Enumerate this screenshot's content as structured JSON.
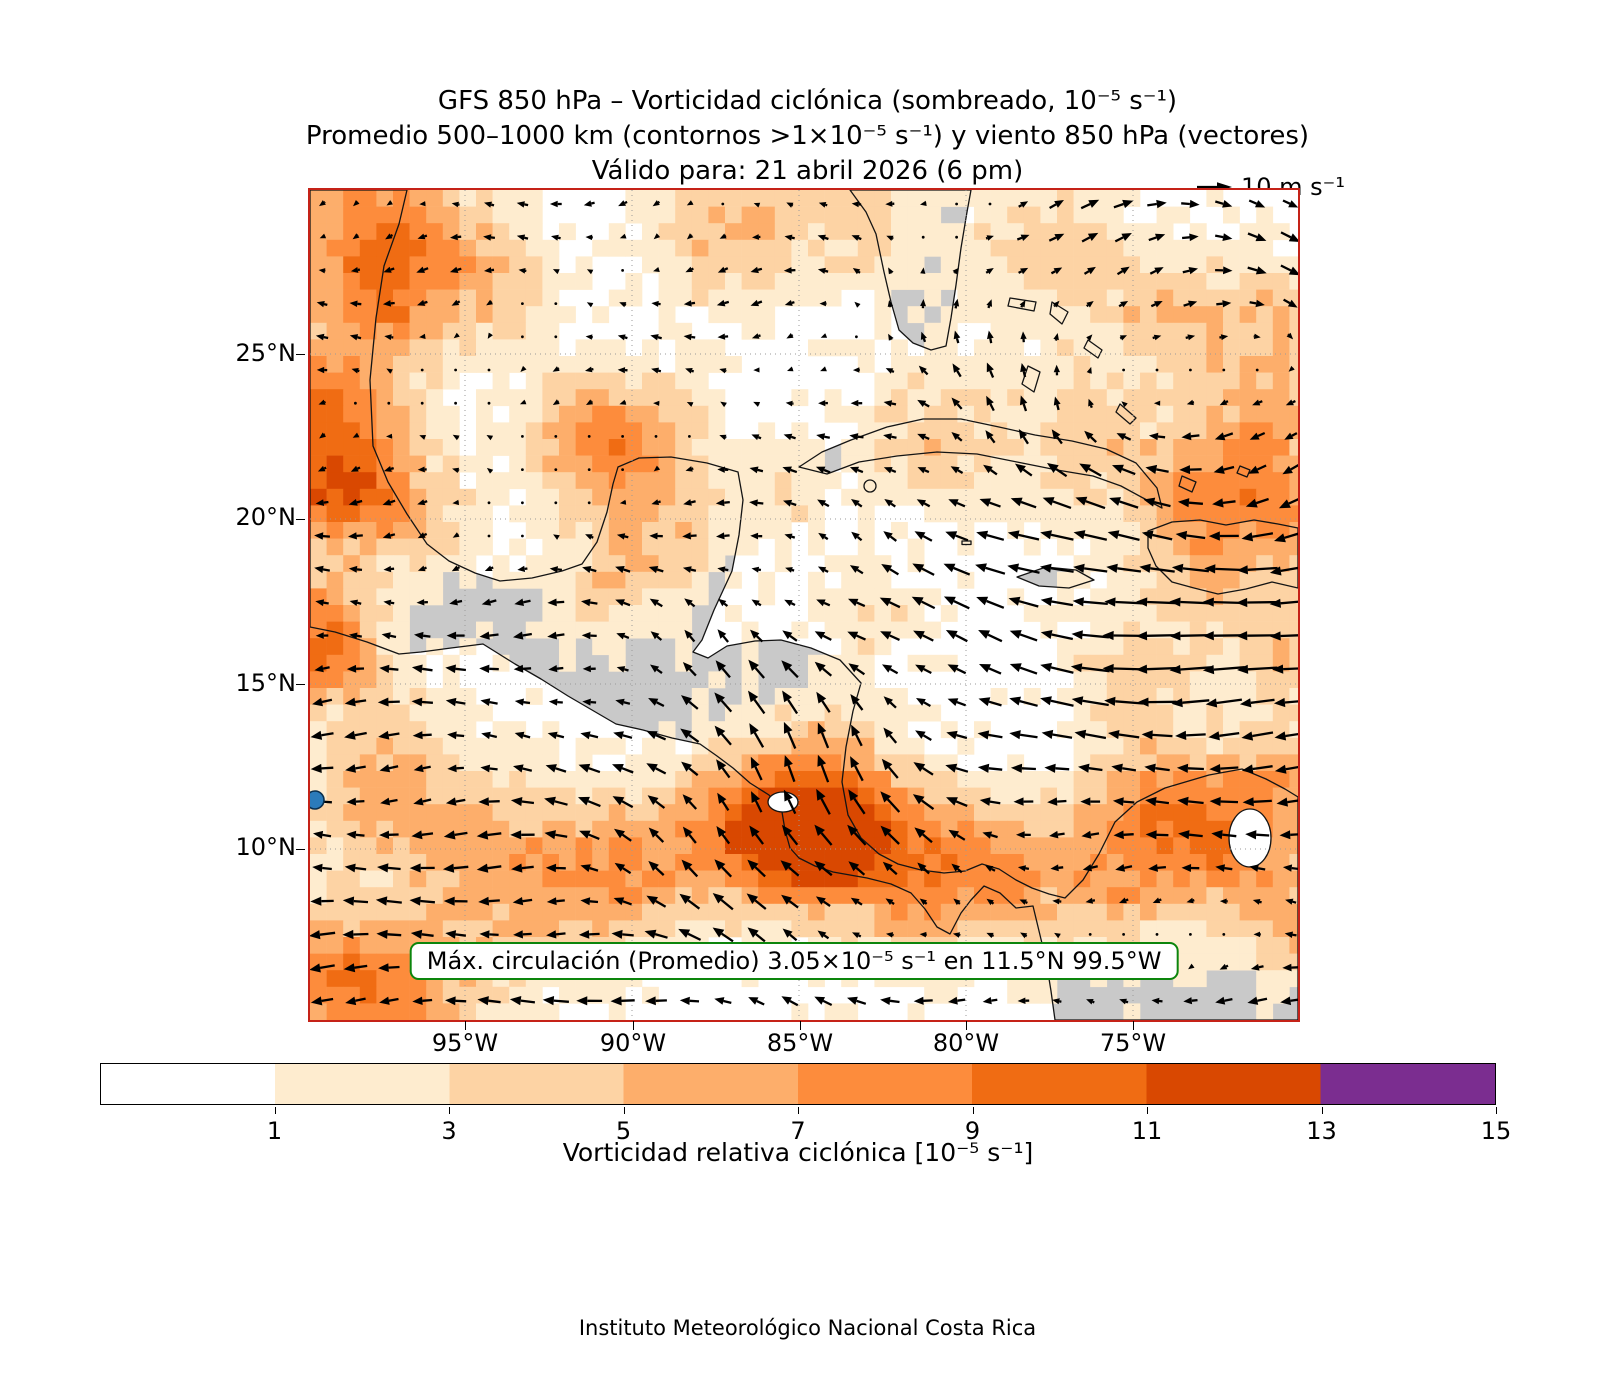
{
  "title": {
    "line1": "GFS 850 hPa – Vorticidad ciclónica (sombreado, 10⁻⁵ s⁻¹)",
    "line2": "Promedio 500–1000 km (contornos >1×10⁻⁵ s⁻¹) y viento 850 hPa (vectores)",
    "line3": "Válido para: 21 abril 2026 (6 pm)"
  },
  "quiver_key": {
    "label": "10 m s⁻¹",
    "value": 10
  },
  "map": {
    "lat_ticks": [
      "25°N",
      "20°N",
      "15°N",
      "10°N"
    ],
    "lon_ticks": [
      "95°W",
      "90°W",
      "85°W",
      "80°W",
      "75°W"
    ],
    "annotation": "Máx. circulación (Promedio) 3.05×10⁻⁵ s⁻¹ en 11.5°N 99.5°W",
    "marker": {
      "lat": "11.5°N",
      "lon": "99.5°W"
    }
  },
  "colorbar": {
    "label": "Vorticidad relativa ciclónica [10⁻⁵ s⁻¹]",
    "ticks": [
      "1",
      "3",
      "5",
      "7",
      "9",
      "11",
      "13",
      "15"
    ],
    "range": [
      -1,
      15
    ],
    "segments": [
      {
        "from": -1,
        "to": 1,
        "color": "#ffffff"
      },
      {
        "from": 1,
        "to": 3,
        "color": "#feeccf"
      },
      {
        "from": 3,
        "to": 5,
        "color": "#fdd3a4"
      },
      {
        "from": 5,
        "to": 7,
        "color": "#fdae6b"
      },
      {
        "from": 7,
        "to": 9,
        "color": "#fd8c3c"
      },
      {
        "from": 9,
        "to": 11,
        "color": "#f06c13"
      },
      {
        "from": 11,
        "to": 13,
        "color": "#d94801"
      },
      {
        "from": 13,
        "to": 15,
        "color": "#7b2d90"
      }
    ]
  },
  "footer": "Instituto Meteorológico Nacional Costa Rica",
  "colors": {
    "map_border": "#c52218",
    "annotation_border": "#0c850c",
    "land": "#c9c9c9",
    "coastline": "#141414",
    "marker_fill": "#2b7bba",
    "vector": "#000000"
  },
  "chart_data": {
    "type": "heatmap",
    "title": "GFS 850 hPa – Vorticidad ciclónica (sombreado, 10⁻⁵ s⁻¹)",
    "subtitle": "Promedio 500–1000 km (contornos >1×10⁻⁵ s⁻¹) y viento 850 hPa (vectores)",
    "valid_time": "Válido para: 21 abril 2026 (6 pm)",
    "model": "GFS",
    "level_hPa": 850,
    "x_tick_labels": [
      "95°W",
      "90°W",
      "85°W",
      "80°W",
      "75°W"
    ],
    "y_tick_labels": [
      "25°N",
      "20°N",
      "15°N",
      "10°N"
    ],
    "lon_range_west_deg": [
      100,
      70
    ],
    "lat_range_north_deg": [
      5,
      30
    ],
    "grid": true,
    "colorbar_label": "Vorticidad relativa ciclónica [10⁻⁵ s⁻¹]",
    "colorbar_boundaries": [
      -1,
      1,
      3,
      5,
      7,
      9,
      11,
      13,
      15
    ],
    "colorbar_tick_labels": [
      "1",
      "3",
      "5",
      "7",
      "9",
      "11",
      "13",
      "15"
    ],
    "quiver_reference": {
      "value": 10,
      "label": "10 m s⁻¹"
    },
    "contour_threshold_label": ">1×10⁻⁵ s⁻¹",
    "max_circulation": {
      "label": "Máx. circulación (Promedio)",
      "value_label": "3.05×10⁻⁵ s⁻¹",
      "lat": "11.5°N",
      "lon": "99.5°W"
    },
    "credit": "Instituto Meteorológico Nacional Costa Rica"
  }
}
